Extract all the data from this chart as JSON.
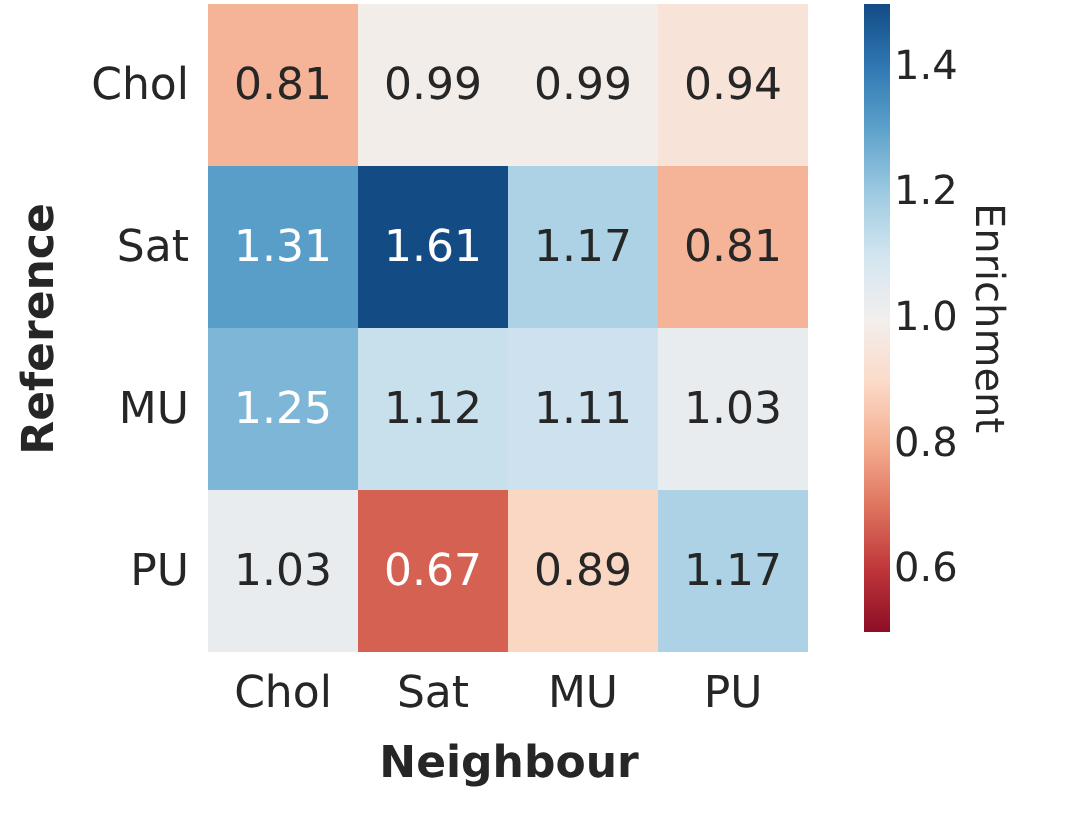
{
  "chart_data": {
    "type": "heatmap",
    "xlabel": "Neighbour",
    "ylabel": "Reference",
    "clabel": "Enrichment",
    "categories": [
      "Chol",
      "Sat",
      "MU",
      "PU"
    ],
    "y_categories": [
      "Chol",
      "Sat",
      "MU",
      "PU"
    ],
    "cells": [
      [
        0.81,
        0.99,
        0.99,
        0.94
      ],
      [
        1.31,
        1.61,
        1.17,
        0.81
      ],
      [
        1.25,
        1.12,
        1.11,
        1.03
      ],
      [
        1.03,
        0.67,
        0.89,
        1.17
      ]
    ],
    "data_labels": true,
    "clim": [
      0.5,
      1.5
    ],
    "cticks": [
      0.6,
      0.8,
      {
        "value": 1,
        "label": "1.0"
      },
      1.2,
      1.4
    ]
  }
}
